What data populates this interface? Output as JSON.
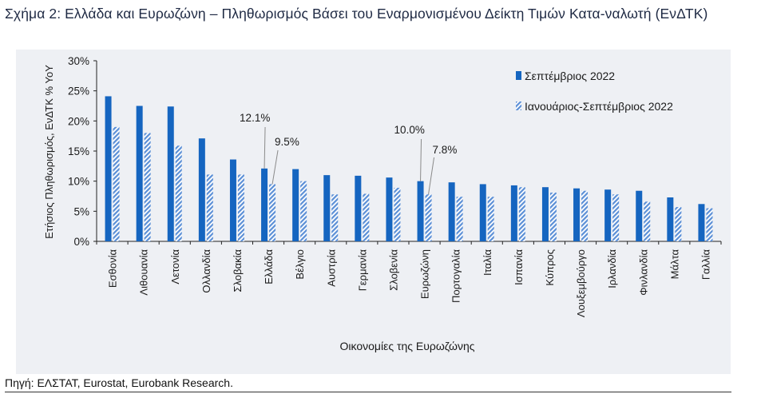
{
  "figure": {
    "title": "Σχήμα 2: Ελλάδα και Ευρωζώνη – Πληθωρισμός Βάσει του Εναρμονισμένου Δείκτη Τιμών Κατα-ναλωτή (ΕνΔΤΚ)",
    "source": "Πηγή: ΕΛΣΤΑΤ, Eurostat, Eurobank Research."
  },
  "colors": {
    "series1": "#1565c0",
    "series2_hatch": "#5b8fd6",
    "background": "#eef0f4"
  },
  "chart_data": {
    "type": "bar",
    "xlabel": "Οικονομίες της Ευρωζώνης",
    "ylabel": "Ετήσιος Πληθωρισμός, ΕνΔΤΚ % ΥοΥ",
    "ylim": [
      0,
      30
    ],
    "yticks": [
      "0%",
      "5%",
      "10%",
      "15%",
      "20%",
      "25%",
      "30%"
    ],
    "grid": false,
    "legend_position": "top-right",
    "categories": [
      "Εσθονία",
      "Λιθουανία",
      "Λετονία",
      "Ολλανδία",
      "Σλοβακία",
      "Ελλάδα",
      "Βέλγιο",
      "Αυστρία",
      "Γερμανία",
      "Σλοβενία",
      "Ευρωζώνη",
      "Πορτογαλία",
      "Ιταλία",
      "Ισπανία",
      "Κύπρος",
      "Λουξεμβούργο",
      "Ιρλανδία",
      "Φινλανδία",
      "Μάλτα",
      "Γαλλία"
    ],
    "series": [
      {
        "name": "Σεπτέμβριος 2022",
        "values": [
          24.1,
          22.5,
          22.4,
          17.1,
          13.6,
          12.1,
          12.0,
          11.0,
          10.9,
          10.6,
          10.0,
          9.8,
          9.5,
          9.3,
          9.0,
          8.8,
          8.6,
          8.4,
          7.3,
          6.2
        ]
      },
      {
        "name": "Ιανουάριος-Σεπτέμβριος 2022",
        "values": [
          19.0,
          18.0,
          15.9,
          11.1,
          11.1,
          9.5,
          10.0,
          7.8,
          7.9,
          8.9,
          7.8,
          7.4,
          7.4,
          9.0,
          8.1,
          8.4,
          7.8,
          6.6,
          5.7,
          5.5
        ]
      }
    ],
    "annotations": [
      {
        "text": "12.1%",
        "category": "Ελλάδα",
        "series": 0
      },
      {
        "text": "9.5%",
        "category": "Ελλάδα",
        "series": 1
      },
      {
        "text": "10.0%",
        "category": "Ευρωζώνη",
        "series": 0
      },
      {
        "text": "7.8%",
        "category": "Ευρωζώνη",
        "series": 1
      }
    ]
  }
}
